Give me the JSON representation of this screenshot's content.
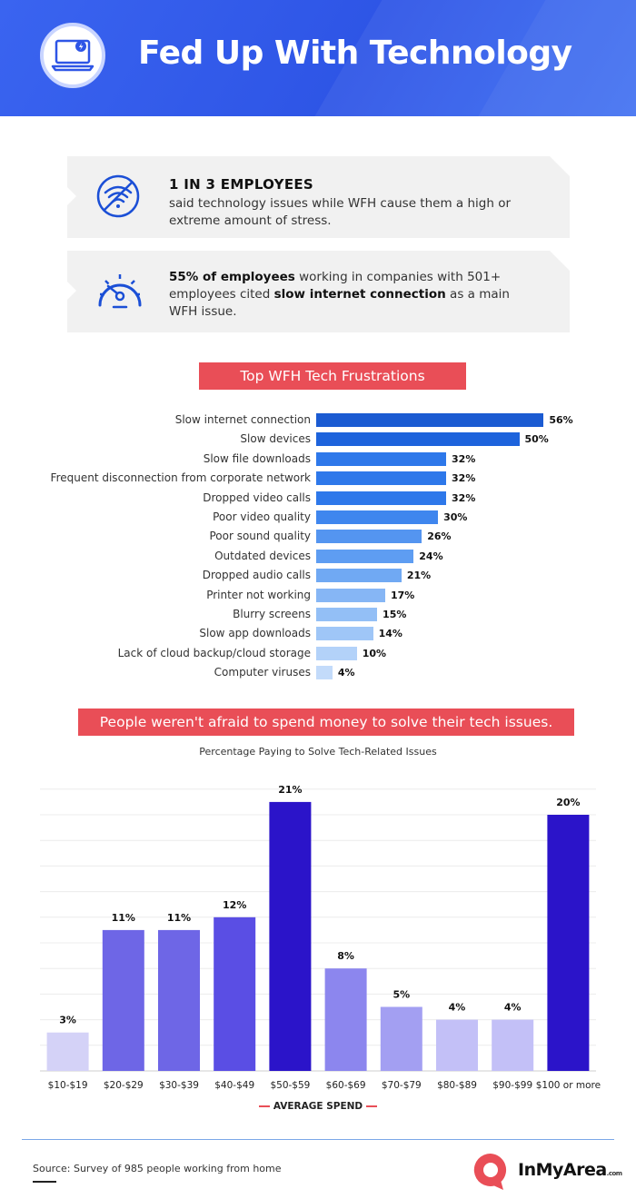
{
  "header": {
    "title": "Fed Up With Technology",
    "icon": "laptop-icon"
  },
  "stats": [
    {
      "icon": "no-wifi-icon",
      "headline": "1 IN 3 EMPLOYEES",
      "text": "said technology issues while WFH cause them a high or extreme amount of stress."
    },
    {
      "icon": "speedometer-icon",
      "part1_bold": "55% of employees",
      "part2": " working in companies with 501+ employees cited ",
      "part3_bold": "slow internet connection",
      "part4": " as a main WFH issue."
    }
  ],
  "frustrations_banner": "Top WFH Tech Frustrations",
  "spend_banner": "People weren't afraid to spend money to solve their tech issues.",
  "colors": {
    "header": "#2e55e6",
    "banner": "#e94e57",
    "accent": "#1b4fd6"
  },
  "chart_data": [
    {
      "type": "bar",
      "orientation": "horizontal",
      "title": "Top WFH Tech Frustrations",
      "categories": [
        "Slow internet connection",
        "Slow devices",
        "Slow file downloads",
        "Frequent disconnection from corporate network",
        "Dropped video calls",
        "Poor video quality",
        "Poor sound quality",
        "Outdated devices",
        "Dropped audio calls",
        "Printer not working",
        "Blurry screens",
        "Slow app downloads",
        "Lack of cloud backup/cloud storage",
        "Computer viruses"
      ],
      "values": [
        56,
        50,
        32,
        32,
        32,
        30,
        26,
        24,
        21,
        17,
        15,
        14,
        10,
        4
      ],
      "value_labels": [
        "56%",
        "50%",
        "32%",
        "32%",
        "32%",
        "30%",
        "26%",
        "24%",
        "21%",
        "17%",
        "15%",
        "14%",
        "10%",
        "4%"
      ],
      "unit": "%"
    },
    {
      "type": "bar",
      "orientation": "vertical",
      "title": "Percentage Paying to Solve Tech-Related Issues",
      "xlabel": "AVERAGE SPEND",
      "ylabel": "",
      "categories": [
        "$10-$19",
        "$20-$29",
        "$30-$39",
        "$40-$49",
        "$50-$59",
        "$60-$69",
        "$70-$79",
        "$80-$89",
        "$90-$99",
        "$100 or more"
      ],
      "values": [
        3,
        11,
        11,
        12,
        21,
        8,
        5,
        4,
        4,
        20
      ],
      "value_labels": [
        "3%",
        "11%",
        "11%",
        "12%",
        "21%",
        "8%",
        "5%",
        "4%",
        "4%",
        "20%"
      ],
      "ylim": [
        0,
        22
      ],
      "grid": true
    }
  ],
  "footer": {
    "source": "Source: Survey of 985 people working from home",
    "brand": "InMyArea",
    "brand_suffix": ".com"
  }
}
